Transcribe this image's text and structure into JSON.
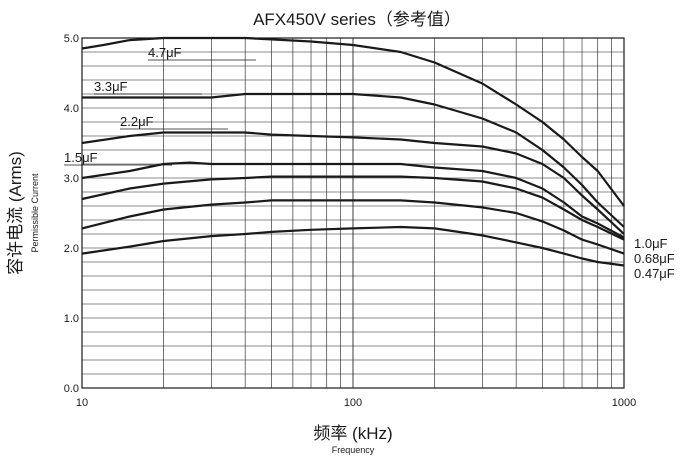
{
  "chart_data": {
    "type": "line",
    "title": "AFX450V series（参考值）",
    "xlabel": "频率 (kHz)",
    "xlabel_sub": "Frequency",
    "ylabel": "容许电流 (Arms)",
    "ylabel_sub": "Permissible Current",
    "x_scale": "log",
    "xlim": [
      10,
      1000
    ],
    "ylim": [
      0,
      5
    ],
    "x_ticks": [
      "10",
      "100",
      "1000"
    ],
    "y_ticks": [
      "0.0",
      "1.0",
      "2.0",
      "3.0",
      "4.0",
      "5.0"
    ],
    "grid": true,
    "series": [
      {
        "name": "4.7μF",
        "label_side": "left",
        "x": [
          10,
          12,
          15,
          20,
          30,
          40,
          50,
          70,
          100,
          150,
          200,
          300,
          400,
          500,
          600,
          700,
          800,
          1000
        ],
        "y": [
          4.85,
          4.9,
          4.97,
          5.0,
          5.0,
          5.0,
          4.98,
          4.95,
          4.9,
          4.8,
          4.65,
          4.35,
          4.05,
          3.8,
          3.55,
          3.3,
          3.1,
          2.6
        ]
      },
      {
        "name": "3.3μF",
        "label_side": "left",
        "x": [
          10,
          15,
          20,
          30,
          40,
          50,
          70,
          100,
          150,
          200,
          300,
          400,
          500,
          600,
          700,
          800,
          1000
        ],
        "y": [
          4.15,
          4.15,
          4.15,
          4.15,
          4.2,
          4.2,
          4.2,
          4.2,
          4.15,
          4.05,
          3.85,
          3.65,
          3.4,
          3.15,
          2.9,
          2.65,
          2.3
        ]
      },
      {
        "name": "2.2μF",
        "label_side": "left",
        "x": [
          10,
          15,
          20,
          30,
          40,
          50,
          70,
          100,
          150,
          200,
          300,
          400,
          500,
          600,
          700,
          800,
          1000
        ],
        "y": [
          3.5,
          3.6,
          3.65,
          3.65,
          3.65,
          3.62,
          3.6,
          3.58,
          3.55,
          3.5,
          3.45,
          3.35,
          3.2,
          3.0,
          2.75,
          2.55,
          2.2
        ]
      },
      {
        "name": "1.5μF",
        "label_side": "left",
        "x": [
          10,
          15,
          20,
          25,
          30,
          40,
          50,
          70,
          100,
          150,
          200,
          300,
          400,
          500,
          600,
          700,
          800,
          1000
        ],
        "y": [
          3.0,
          3.1,
          3.2,
          3.22,
          3.2,
          3.2,
          3.2,
          3.2,
          3.2,
          3.2,
          3.15,
          3.1,
          3.0,
          2.85,
          2.65,
          2.45,
          2.35,
          2.15
        ]
      },
      {
        "name": "1.0μF",
        "label_side": "right",
        "x": [
          10,
          15,
          20,
          30,
          40,
          50,
          70,
          100,
          150,
          200,
          300,
          400,
          500,
          600,
          700,
          800,
          1000
        ],
        "y": [
          2.7,
          2.85,
          2.92,
          2.98,
          3.0,
          3.02,
          3.02,
          3.02,
          3.02,
          3.0,
          2.95,
          2.85,
          2.72,
          2.55,
          2.4,
          2.3,
          2.12
        ]
      },
      {
        "name": "0.68μF",
        "label_side": "right",
        "x": [
          10,
          15,
          20,
          30,
          40,
          50,
          70,
          100,
          150,
          200,
          300,
          400,
          500,
          600,
          700,
          800,
          1000
        ],
        "y": [
          2.28,
          2.45,
          2.55,
          2.62,
          2.65,
          2.68,
          2.68,
          2.68,
          2.68,
          2.65,
          2.58,
          2.5,
          2.38,
          2.25,
          2.12,
          2.05,
          1.92
        ]
      },
      {
        "name": "0.47μF",
        "label_side": "right",
        "x": [
          10,
          15,
          20,
          30,
          40,
          50,
          70,
          100,
          150,
          200,
          300,
          400,
          500,
          600,
          700,
          800,
          1000
        ],
        "y": [
          1.92,
          2.02,
          2.1,
          2.17,
          2.2,
          2.23,
          2.26,
          2.28,
          2.3,
          2.28,
          2.18,
          2.08,
          2.0,
          1.92,
          1.85,
          1.8,
          1.75
        ]
      }
    ]
  }
}
